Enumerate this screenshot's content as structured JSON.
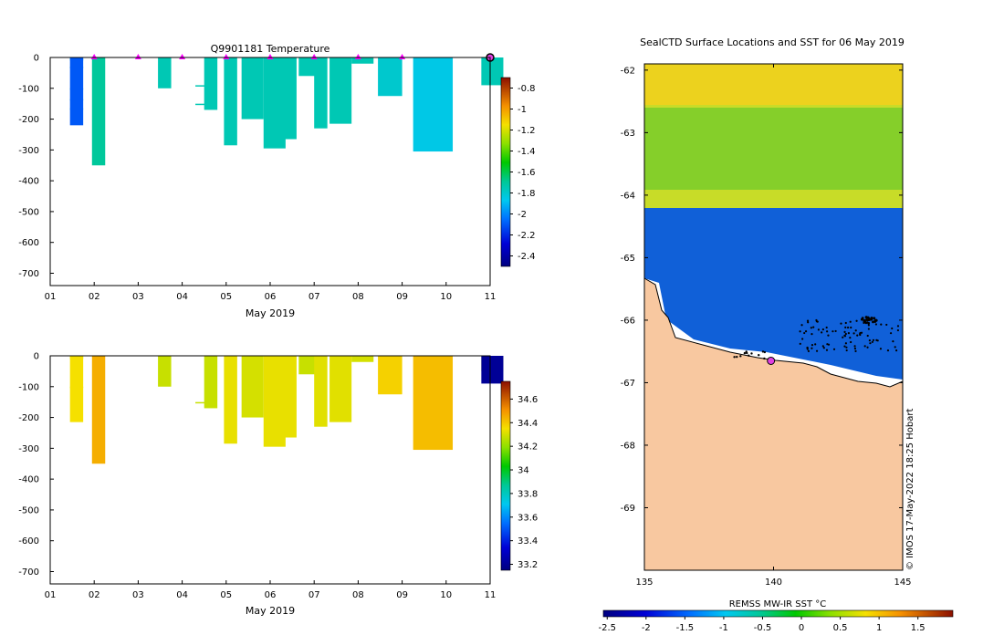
{
  "chart_data": [
    {
      "type": "heatmap",
      "title": "Q9901181  Temperature",
      "xlabel": "May 2019",
      "xticks": [
        "01",
        "02",
        "03",
        "04",
        "05",
        "06",
        "07",
        "08",
        "09",
        "10",
        "11"
      ],
      "xlim": [
        1,
        11
      ],
      "yticks": [
        0,
        -100,
        -200,
        -300,
        -400,
        -500,
        -600,
        -700
      ],
      "ylim": [
        -740,
        0
      ],
      "colorbar": {
        "ticks": [
          "-0.8",
          "-1",
          "-1.2",
          "-1.4",
          "-1.6",
          "-1.8",
          "-2",
          "-2.2",
          "-2.4"
        ],
        "range": [
          -2.5,
          -0.7
        ]
      },
      "surface_markers_day": [
        2,
        3,
        4,
        5,
        6,
        7,
        8,
        9
      ],
      "last_position_day": 11,
      "profiles": [
        {
          "day": 1.45,
          "w": 0.3,
          "depth": -10,
          "v": -1.75
        },
        {
          "day": 1.45,
          "w": 0.3,
          "depth": -30,
          "v": -1.75,
          "line": true
        },
        {
          "day": 1.45,
          "w": 0.3,
          "depth": -100,
          "v": -1.75,
          "line": true
        },
        {
          "day": 1.45,
          "w": 0.3,
          "depth": -135,
          "v": -1.75,
          "line": true
        },
        {
          "day": 1.45,
          "w": 0.3,
          "depth": -165,
          "v": -1.75,
          "line": true
        },
        {
          "day": 1.45,
          "w": 0.3,
          "depth": -220,
          "v": -2.1
        },
        {
          "day": 1.95,
          "w": 0.3,
          "depth": -350,
          "v": -1.7
        },
        {
          "day": 3.45,
          "w": 0.3,
          "depth": -100,
          "v": -1.75
        },
        {
          "day": 4.3,
          "w": 0.3,
          "depth": -90,
          "v": -1.75,
          "line": true
        },
        {
          "day": 4.3,
          "w": 0.3,
          "depth": -150,
          "v": -1.75,
          "line": true
        },
        {
          "day": 4.5,
          "w": 0.3,
          "depth": -170,
          "v": -1.75
        },
        {
          "day": 4.95,
          "w": 0.3,
          "depth": -285,
          "v": -1.75
        },
        {
          "day": 5.35,
          "w": 0.5,
          "depth": -200,
          "v": -1.75
        },
        {
          "day": 5.85,
          "w": 0.5,
          "depth": -295,
          "v": -1.75
        },
        {
          "day": 6.3,
          "w": 0.3,
          "depth": -265,
          "v": -1.75
        },
        {
          "day": 6.65,
          "w": 0.4,
          "depth": -60,
          "v": -1.75
        },
        {
          "day": 7.0,
          "w": 0.3,
          "depth": -230,
          "v": -1.75
        },
        {
          "day": 7.35,
          "w": 0.5,
          "depth": -215,
          "v": -1.75
        },
        {
          "day": 7.85,
          "w": 0.5,
          "depth": -20,
          "v": -1.75
        },
        {
          "day": 8.45,
          "w": 0.55,
          "depth": -125,
          "v": -1.8
        },
        {
          "day": 9.25,
          "w": 0.9,
          "depth": -305,
          "v": -1.85
        },
        {
          "day": 10.8,
          "w": 0.5,
          "depth": -90,
          "v": -1.75
        }
      ]
    },
    {
      "type": "heatmap",
      "title": "",
      "xlabel": "May 2019",
      "xticks": [
        "01",
        "02",
        "03",
        "04",
        "05",
        "06",
        "07",
        "08",
        "09",
        "10",
        "11"
      ],
      "xlim": [
        1,
        11
      ],
      "yticks": [
        0,
        -100,
        -200,
        -300,
        -400,
        -500,
        -600,
        -700
      ],
      "ylim": [
        -740,
        0
      ],
      "colorbar": {
        "ticks": [
          "34.6",
          "34.4",
          "34.2",
          "34",
          "33.8",
          "33.6",
          "33.4",
          "33.2"
        ],
        "range": [
          33.15,
          34.75
        ]
      },
      "profiles": [
        {
          "day": 1.45,
          "w": 0.3,
          "depth": -10,
          "v": 34.3
        },
        {
          "day": 1.45,
          "w": 0.3,
          "depth": -100,
          "v": 34.3,
          "line": true
        },
        {
          "day": 1.45,
          "w": 0.3,
          "depth": -215,
          "v": 34.35
        },
        {
          "day": 1.95,
          "w": 0.3,
          "depth": -350,
          "v": 34.45
        },
        {
          "day": 3.45,
          "w": 0.3,
          "depth": -100,
          "v": 34.28
        },
        {
          "day": 4.3,
          "w": 0.3,
          "depth": -150,
          "v": 34.28,
          "line": true
        },
        {
          "day": 4.5,
          "w": 0.3,
          "depth": -170,
          "v": 34.28
        },
        {
          "day": 4.95,
          "w": 0.3,
          "depth": -285,
          "v": 34.33
        },
        {
          "day": 5.35,
          "w": 0.5,
          "depth": -200,
          "v": 34.3
        },
        {
          "day": 5.85,
          "w": 0.5,
          "depth": -295,
          "v": 34.33
        },
        {
          "day": 6.3,
          "w": 0.3,
          "depth": -265,
          "v": 34.33
        },
        {
          "day": 6.65,
          "w": 0.4,
          "depth": -60,
          "v": 34.28
        },
        {
          "day": 7.0,
          "w": 0.3,
          "depth": -230,
          "v": 34.32
        },
        {
          "day": 7.35,
          "w": 0.5,
          "depth": -215,
          "v": 34.32
        },
        {
          "day": 7.85,
          "w": 0.5,
          "depth": -20,
          "v": 34.3
        },
        {
          "day": 8.45,
          "w": 0.55,
          "depth": -125,
          "v": 34.38
        },
        {
          "day": 9.25,
          "w": 0.9,
          "depth": -305,
          "v": 34.42
        },
        {
          "day": 10.8,
          "w": 0.5,
          "depth": -50,
          "v": 34.28
        },
        {
          "day": 10.8,
          "w": 0.5,
          "depth": -90,
          "v": 33.2
        }
      ]
    },
    {
      "type": "heatmap",
      "title": "SealCTD Surface Locations and SST for 06 May 2019",
      "xlabel": "",
      "xticks": [
        "135",
        "140",
        "145"
      ],
      "xlim": [
        135,
        145
      ],
      "yticks": [
        "-62",
        "-63",
        "-64",
        "-65",
        "-66",
        "-67",
        "-68",
        "-69"
      ],
      "ylim": [
        -70,
        -61.9
      ],
      "colorbar": {
        "label": "REMSS MW-IR SST °C",
        "ticks": [
          "-2.5",
          "-2",
          "-1.5",
          "-1",
          "-0.5",
          "0",
          "0.5",
          "1",
          "1.5"
        ],
        "range": [
          -2.55,
          1.95
        ]
      },
      "credit": "© IMOS 17-May-2022 18:25 Hobart",
      "zones": [
        {
          "name": "warm",
          "lat_top": -62,
          "lat_bottom": -64.2,
          "sst": 0.5
        },
        {
          "name": "ice",
          "lat_top": -64.2,
          "lat_bottom": -67,
          "sst": -1.85
        },
        {
          "name": "land",
          "lat_top": -66.3,
          "lat_bottom": -70
        }
      ],
      "last_position": {
        "lon": 139.9,
        "lat": -66.65
      }
    }
  ]
}
